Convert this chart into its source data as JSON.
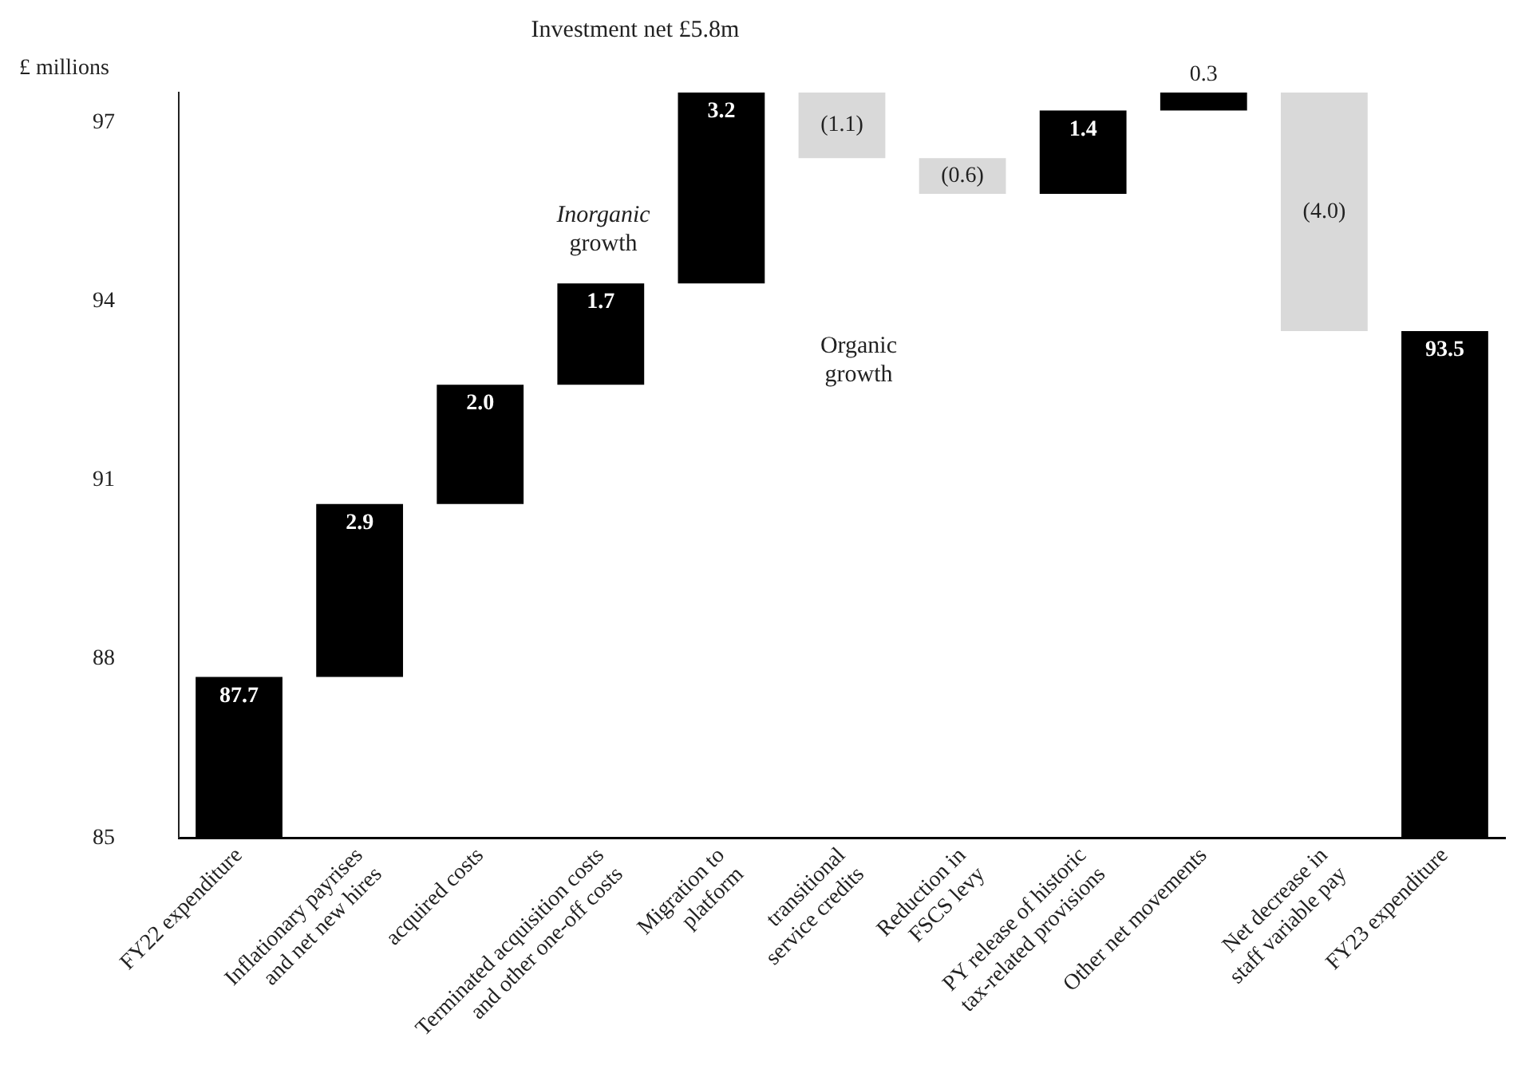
{
  "chart_data": {
    "type": "bar",
    "ylabel": "£ millions",
    "categories": [
      "FY22 expenditure",
      "Inflationary payrises\nand net new hires",
      "acquired costs",
      "Terminated acquisition costs\nand other one-off costs",
      "Migration to\nplatform",
      "transitional\nservice credits",
      "Reduction in\nFSCS levy",
      "PY release of historic\ntax-related provisions",
      "Other net movements",
      "Net decrease in\nstaff variable pay",
      "FY23 expenditure"
    ],
    "base": [
      85,
      87.7,
      90.6,
      92.6,
      94.3,
      97.5,
      96.4,
      95.8,
      97.2,
      97.5,
      85
    ],
    "values": [
      2.7,
      2.9,
      2.0,
      1.7,
      3.2,
      -1.1,
      -0.6,
      1.4,
      0.3,
      -4.0,
      8.5
    ],
    "colors": [
      "#000000",
      "#000000",
      "#000000",
      "#000000",
      "#000000",
      "#d9d9d9",
      "#d9d9d9",
      "#000000",
      "#000000",
      "#d9d9d9",
      "#000000"
    ],
    "value_labels": [
      "87.7",
      "2.9",
      "2.0",
      "1.7",
      "3.2",
      "(1.1)",
      "(0.6)",
      "1.4",
      "0.3",
      "(4.0)",
      "93.5"
    ],
    "ylim": [
      85,
      97.5
    ],
    "yticks": [
      85,
      88,
      91,
      94,
      97
    ],
    "grid": false,
    "annotations": [
      "Investment net £5.8m",
      "Inorganic\ngrowth",
      "Organic\ngrowth"
    ]
  }
}
